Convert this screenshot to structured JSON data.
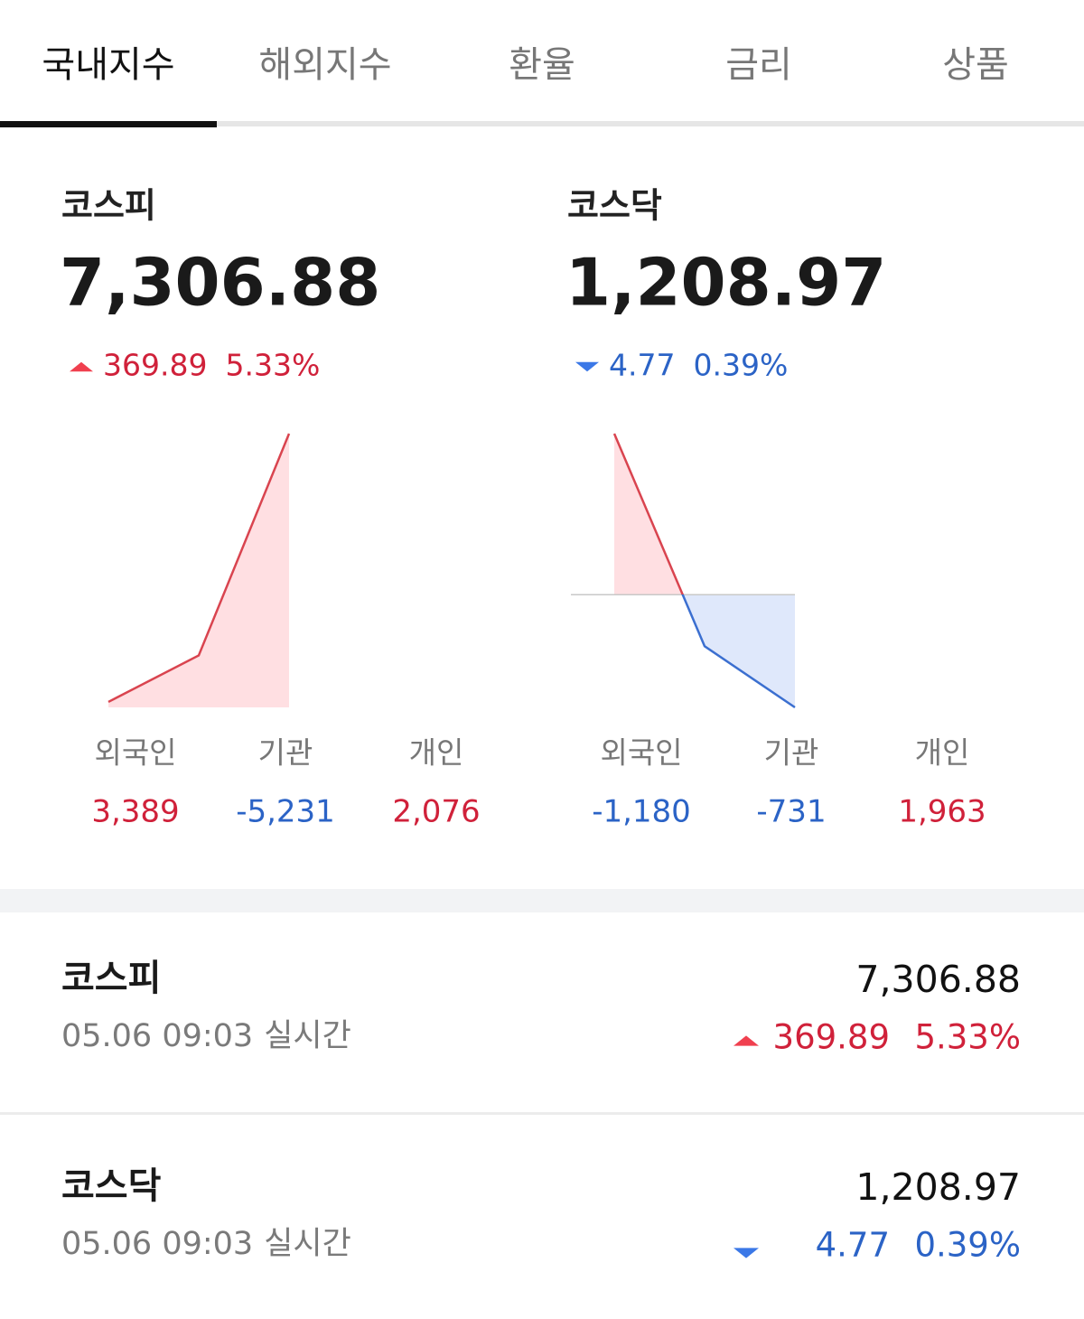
{
  "tabs": [
    "국내지수",
    "해외지수",
    "환율",
    "금리",
    "상품"
  ],
  "summary": [
    {
      "name": "코스피",
      "value": "7,306.88",
      "change": "369.89",
      "rate": "5.33%",
      "direction": "up",
      "chart": {
        "type": "line",
        "values": [
          2,
          19,
          100
        ],
        "ylim": [
          0,
          100
        ]
      },
      "investors": [
        {
          "label": "외국인",
          "value": "3,389"
        },
        {
          "label": "기관",
          "value": "-5,231"
        },
        {
          "label": "개인",
          "value": "2,076"
        }
      ]
    },
    {
      "name": "코스닥",
      "value": "1,208.97",
      "change": "4.77",
      "rate": "0.39%",
      "direction": "down",
      "chart": {
        "type": "line",
        "values": [
          100,
          -32,
          -70
        ],
        "ylim": [
          -70,
          100
        ]
      },
      "investors": [
        {
          "label": "외국인",
          "value": "-1,180"
        },
        {
          "label": "기관",
          "value": "-731"
        },
        {
          "label": "개인",
          "value": "1,963"
        }
      ]
    }
  ],
  "list": [
    {
      "name": "코스피",
      "time": "05.06 09:03",
      "status": "실시간",
      "value": "7,306.88",
      "change": "369.89",
      "rate": "5.33%",
      "direction": "up"
    },
    {
      "name": "코스닥",
      "time": "05.06 09:03",
      "status": "실시간",
      "value": "1,208.97",
      "change": "4.77",
      "rate": "0.39%",
      "direction": "down"
    }
  ]
}
